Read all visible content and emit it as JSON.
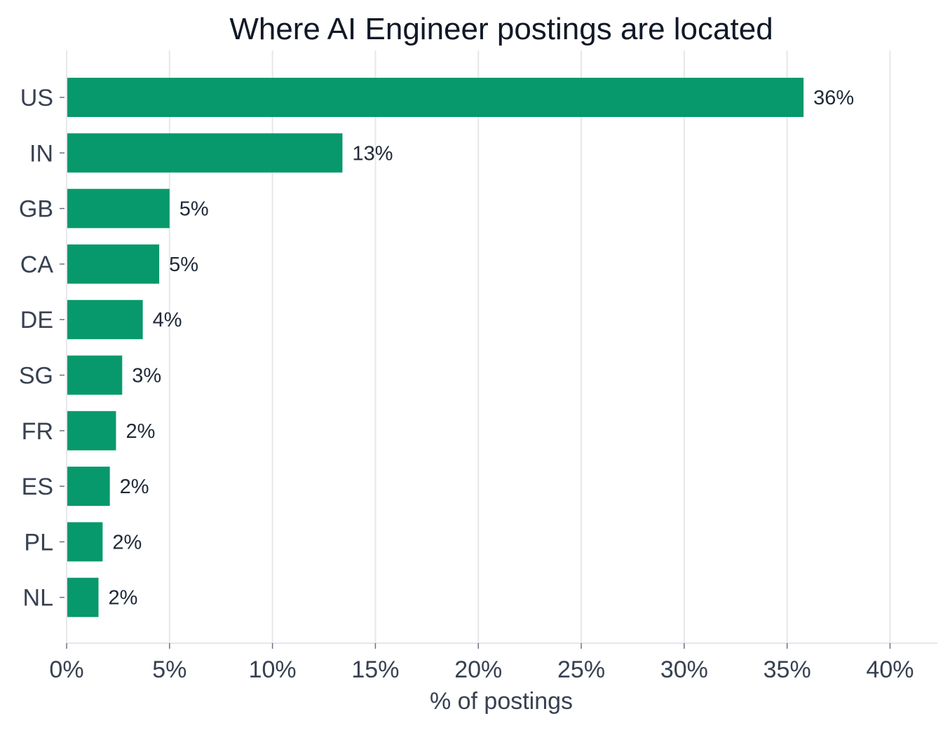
{
  "chart_data": {
    "type": "bar",
    "orientation": "horizontal",
    "title": "Where AI Engineer postings are located",
    "xlabel": "% of postings",
    "ylabel": "",
    "categories": [
      "US",
      "IN",
      "GB",
      "CA",
      "DE",
      "SG",
      "FR",
      "ES",
      "PL",
      "NL"
    ],
    "values": [
      35.8,
      13.4,
      5.0,
      4.5,
      3.7,
      2.7,
      2.4,
      2.1,
      1.75,
      1.55
    ],
    "data_labels": [
      "36%",
      "13%",
      "5%",
      "5%",
      "4%",
      "3%",
      "2%",
      "2%",
      "2%",
      "2%"
    ],
    "xlim": [
      0,
      42.3
    ],
    "xticks": [
      0,
      5,
      10,
      15,
      20,
      25,
      30,
      35,
      40
    ],
    "xtick_labels": [
      "0%",
      "5%",
      "10%",
      "15%",
      "20%",
      "25%",
      "30%",
      "35%",
      "40%"
    ],
    "grid": "vertical",
    "bar_color": "#07996b"
  }
}
